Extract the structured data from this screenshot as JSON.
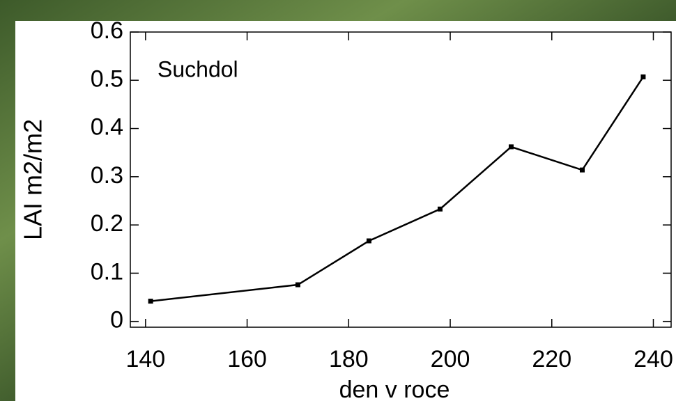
{
  "chart_data": {
    "type": "line",
    "annotation": "Suchdol",
    "x_label": "den v roce",
    "y_label": "LAI m2/m2",
    "x": [
      141,
      170,
      184,
      198,
      212,
      226,
      238
    ],
    "series": [
      {
        "color": "#000000",
        "values": [
          0.042,
          0.076,
          0.167,
          0.233,
          0.362,
          0.314,
          0.507
        ]
      }
    ],
    "xlim": [
      137,
      243.5
    ],
    "ylim": [
      -0.012,
      0.6
    ],
    "xticks": [
      140,
      160,
      180,
      200,
      220,
      240
    ],
    "yticks": [
      0,
      0.1,
      0.2,
      0.3,
      0.4,
      0.5,
      0.6
    ],
    "grid": false
  }
}
